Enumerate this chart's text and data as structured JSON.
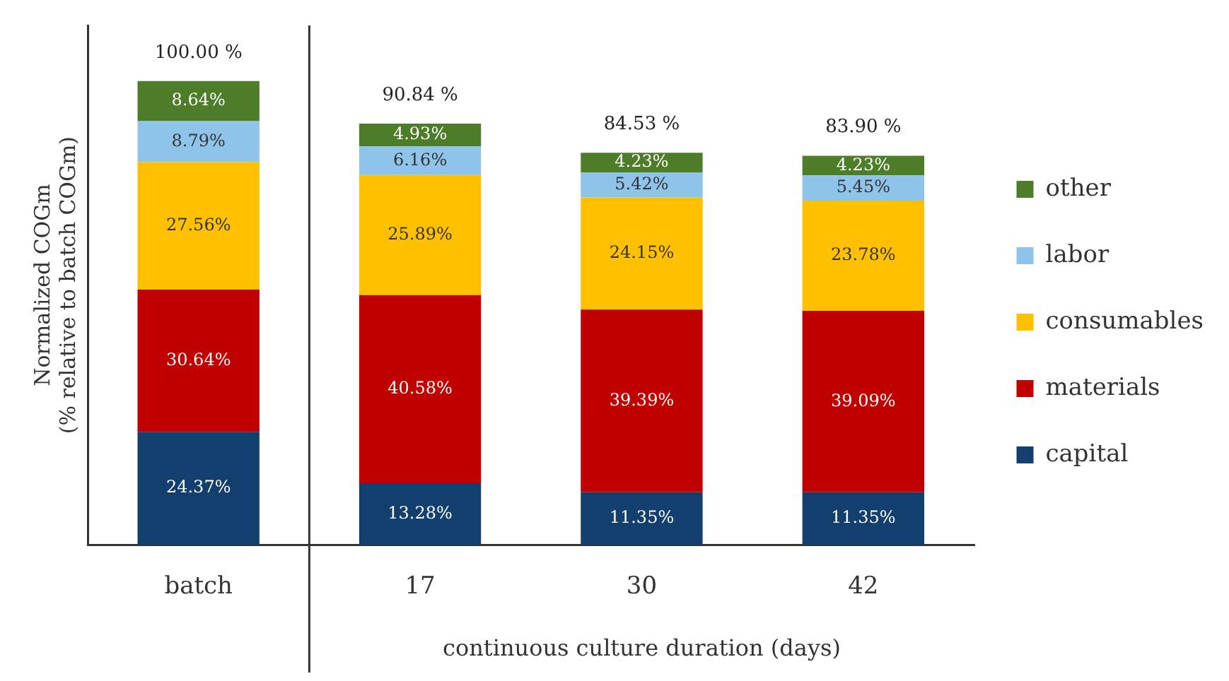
{
  "chart_data": {
    "type": "bar",
    "stacked": true,
    "xlabel": "continuous culture duration (days)",
    "ylabel": "Normalized COGm\n(% relative to batch COGm)",
    "categories": [
      "batch",
      "17",
      "30",
      "42"
    ],
    "ylim": [
      0,
      112
    ],
    "tick_labels": "x",
    "grid": false,
    "legend": "right",
    "series": [
      {
        "name": "capital",
        "color": "#123f6e",
        "values": [
          24.37,
          13.28,
          11.35,
          11.35
        ],
        "value_labels": [
          "24.37%",
          "13.28%",
          "11.35%",
          "11.35%"
        ]
      },
      {
        "name": "materials",
        "color": "#c00000",
        "values": [
          30.64,
          40.58,
          39.39,
          39.09
        ],
        "value_labels": [
          "30.64%",
          "40.58%",
          "39.39%",
          "39.09%"
        ]
      },
      {
        "name": "consumables",
        "color": "#ffc000",
        "values": [
          27.56,
          25.89,
          24.15,
          23.78
        ],
        "value_labels": [
          "27.56%",
          "25.89%",
          "24.15%",
          "23.78%"
        ]
      },
      {
        "name": "labor",
        "color": "#8ec3ea",
        "values": [
          8.79,
          6.16,
          5.42,
          5.45
        ],
        "value_labels": [
          "8.79%",
          "6.16%",
          "5.42%",
          "5.45%"
        ]
      },
      {
        "name": "other",
        "color": "#4e7d2a",
        "values": [
          8.64,
          4.93,
          4.23,
          4.23
        ],
        "value_labels": [
          "8.64%",
          "4.93%",
          "4.23%",
          "4.23%"
        ]
      }
    ],
    "totals": [
      "100.00 %",
      "90.84 %",
      "84.53 %",
      "83.90 %"
    ]
  }
}
